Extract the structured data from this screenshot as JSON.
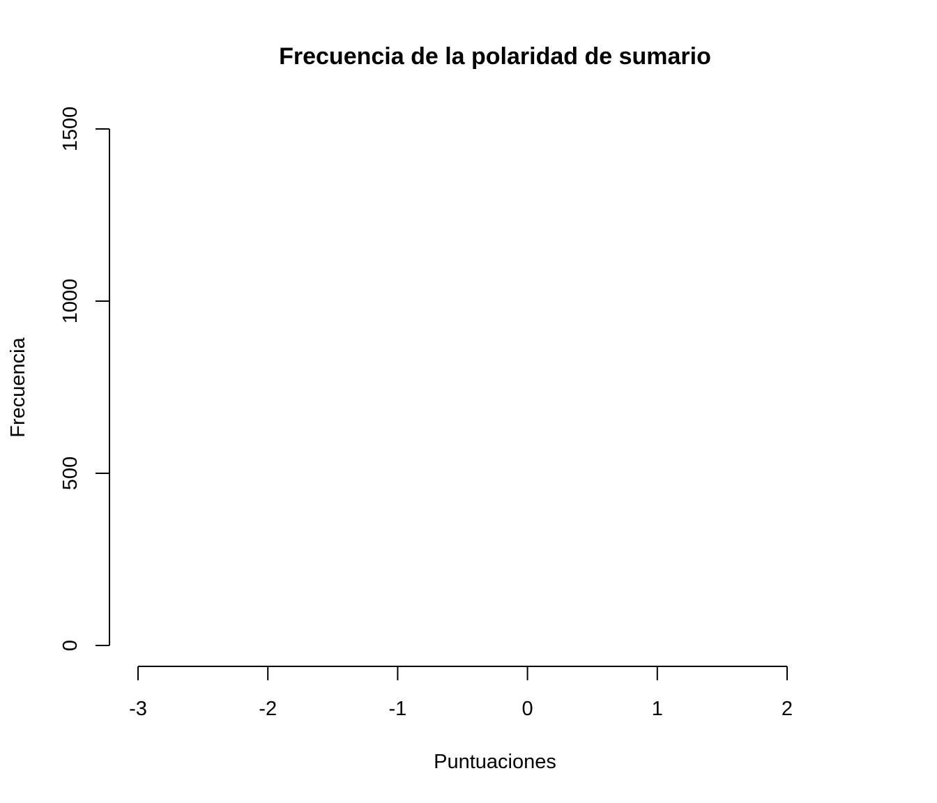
{
  "chart_data": {
    "type": "bar",
    "title": "Frecuencia de la polaridad de sumario",
    "xlabel": "Puntuaciones",
    "ylabel": "Frecuencia",
    "xlim": [
      -3,
      2
    ],
    "ylim": [
      0,
      1500
    ],
    "x_ticks": [
      -3,
      -2,
      -1,
      0,
      1,
      2
    ],
    "x_tick_labels": [
      "-3",
      "-2",
      "-1",
      "0",
      "1",
      "2"
    ],
    "y_ticks": [
      0,
      500,
      1000,
      1500
    ],
    "y_tick_labels": [
      "0",
      "500",
      "1000",
      "1500"
    ],
    "categories": [],
    "values": [],
    "grid": false,
    "legend": "none"
  }
}
